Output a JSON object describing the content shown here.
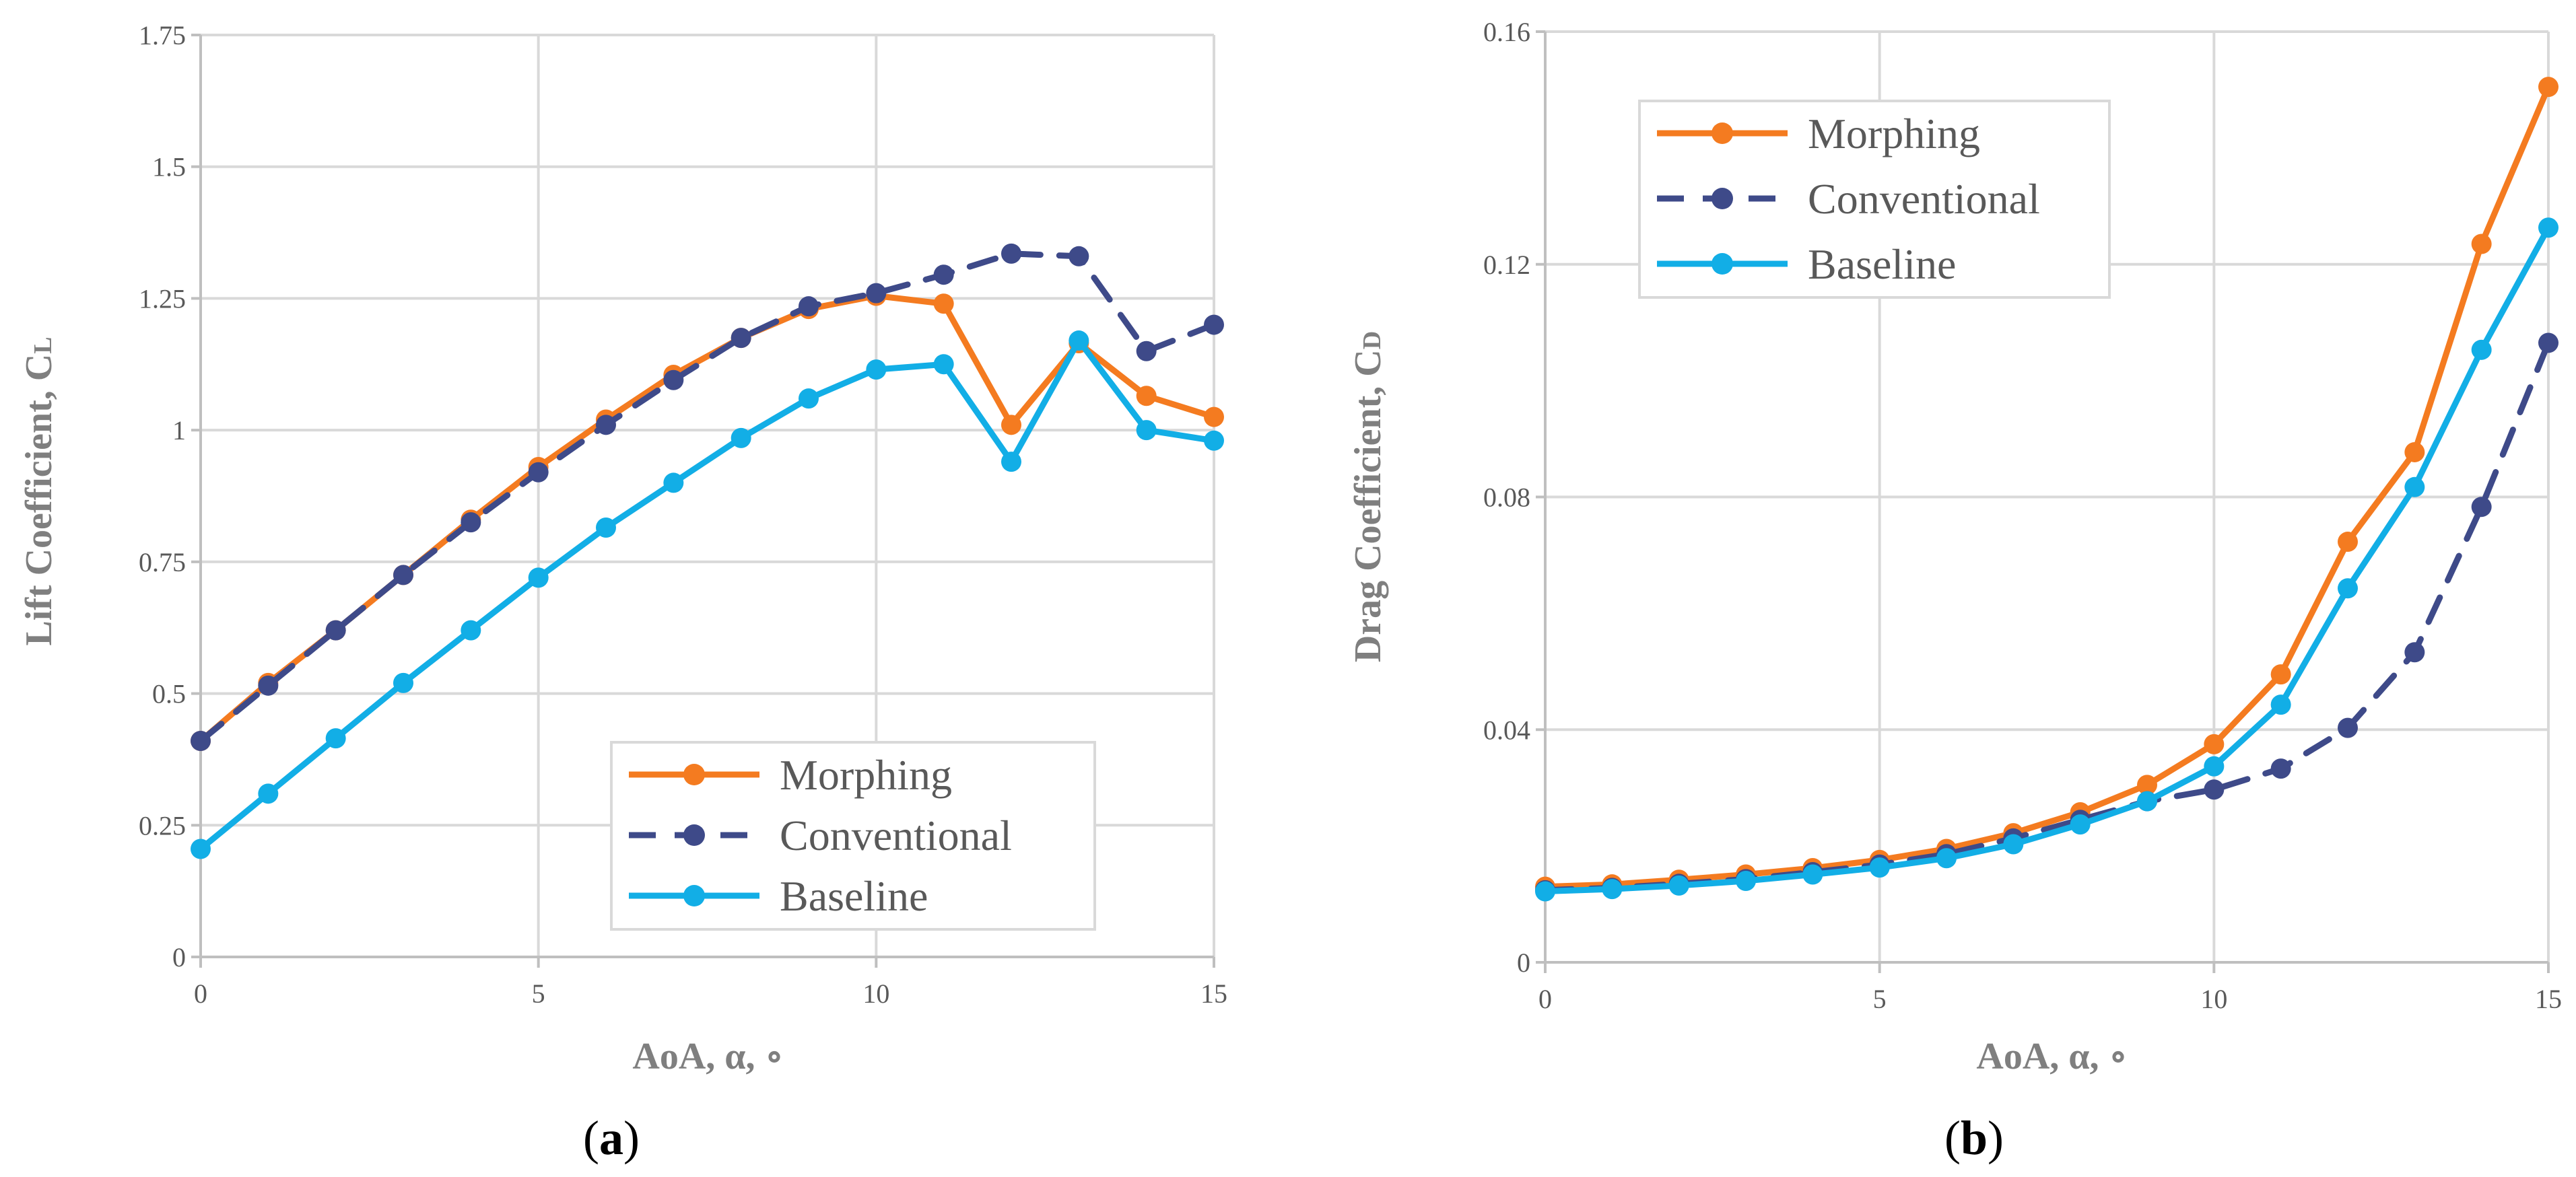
{
  "chart_data": [
    {
      "type": "line",
      "panel": "a",
      "caption_open": "(",
      "caption_letter": "a",
      "caption_close": ")",
      "xlabel": "AoA, α, ∘",
      "ylabel_main": "Lift Coefficient, C",
      "ylabel_sub": "L",
      "xlim": [
        0,
        15
      ],
      "ylim": [
        0,
        1.75
      ],
      "xticks": [
        0,
        5,
        10,
        15
      ],
      "xtick_labels": [
        "0",
        "5",
        "10",
        "15"
      ],
      "yticks": [
        0,
        0.25,
        0.5,
        0.75,
        1,
        1.25,
        1.5,
        1.75
      ],
      "ytick_labels": [
        "0",
        "0.25",
        "0.5",
        "0.75",
        "1",
        "1.25",
        "1.5",
        "1.75"
      ],
      "grid": true,
      "legend_position": "bottom-right",
      "x": [
        0,
        1,
        2,
        3,
        4,
        5,
        6,
        7,
        8,
        9,
        10,
        11,
        12,
        13,
        14,
        15
      ],
      "series": [
        {
          "name": "Morphing",
          "color": "#f47b20",
          "dash": "solid",
          "values": [
            0.41,
            0.52,
            0.62,
            0.725,
            0.83,
            0.93,
            1.02,
            1.105,
            1.175,
            1.23,
            1.255,
            1.24,
            1.01,
            1.165,
            1.065,
            1.025
          ]
        },
        {
          "name": "Conventional",
          "color": "#3e4a89",
          "dash": "dashed",
          "values": [
            0.41,
            0.515,
            0.62,
            0.725,
            0.825,
            0.92,
            1.01,
            1.095,
            1.175,
            1.235,
            1.26,
            1.295,
            1.335,
            1.33,
            1.15,
            1.2
          ]
        },
        {
          "name": "Baseline",
          "color": "#12aee6",
          "dash": "solid",
          "values": [
            0.205,
            0.31,
            0.415,
            0.52,
            0.62,
            0.72,
            0.815,
            0.9,
            0.985,
            1.06,
            1.115,
            1.125,
            0.94,
            1.17,
            1.0,
            0.98
          ]
        }
      ]
    },
    {
      "type": "line",
      "panel": "b",
      "caption_open": "(",
      "caption_letter": "b",
      "caption_close": ")",
      "xlabel": "AoA, α, ∘",
      "ylabel_main": "Drag Coefficient, C",
      "ylabel_sub": "D",
      "xlim": [
        0,
        15
      ],
      "ylim": [
        0,
        0.16
      ],
      "xticks": [
        0,
        5,
        10,
        15
      ],
      "xtick_labels": [
        "0",
        "5",
        "10",
        "15"
      ],
      "yticks": [
        0,
        0.04,
        0.08,
        0.12,
        0.16
      ],
      "ytick_labels": [
        "0",
        "0.04",
        "0.08",
        "0.12",
        "0.16"
      ],
      "grid": true,
      "legend_position": "top-left",
      "x": [
        0,
        1,
        2,
        3,
        4,
        5,
        6,
        7,
        8,
        9,
        10,
        11,
        12,
        13,
        14,
        15
      ],
      "series": [
        {
          "name": "Morphing",
          "color": "#f47b20",
          "dash": "solid",
          "values": [
            0.013,
            0.0134,
            0.0142,
            0.0151,
            0.0162,
            0.0176,
            0.0195,
            0.0222,
            0.0258,
            0.0305,
            0.0375,
            0.0495,
            0.0723,
            0.0877,
            0.1235,
            0.1505
          ]
        },
        {
          "name": "Conventional",
          "color": "#3e4a89",
          "dash": "dashed",
          "values": [
            0.0124,
            0.0128,
            0.0135,
            0.0143,
            0.0155,
            0.0168,
            0.0186,
            0.0213,
            0.0245,
            0.0277,
            0.0297,
            0.0333,
            0.0403,
            0.0533,
            0.0783,
            0.1065
          ]
        },
        {
          "name": "Baseline",
          "color": "#12aee6",
          "dash": "solid",
          "values": [
            0.0122,
            0.0126,
            0.0132,
            0.014,
            0.0151,
            0.0163,
            0.0179,
            0.0203,
            0.0237,
            0.0277,
            0.0337,
            0.0443,
            0.0643,
            0.0817,
            0.1053,
            0.1263
          ]
        }
      ]
    }
  ]
}
